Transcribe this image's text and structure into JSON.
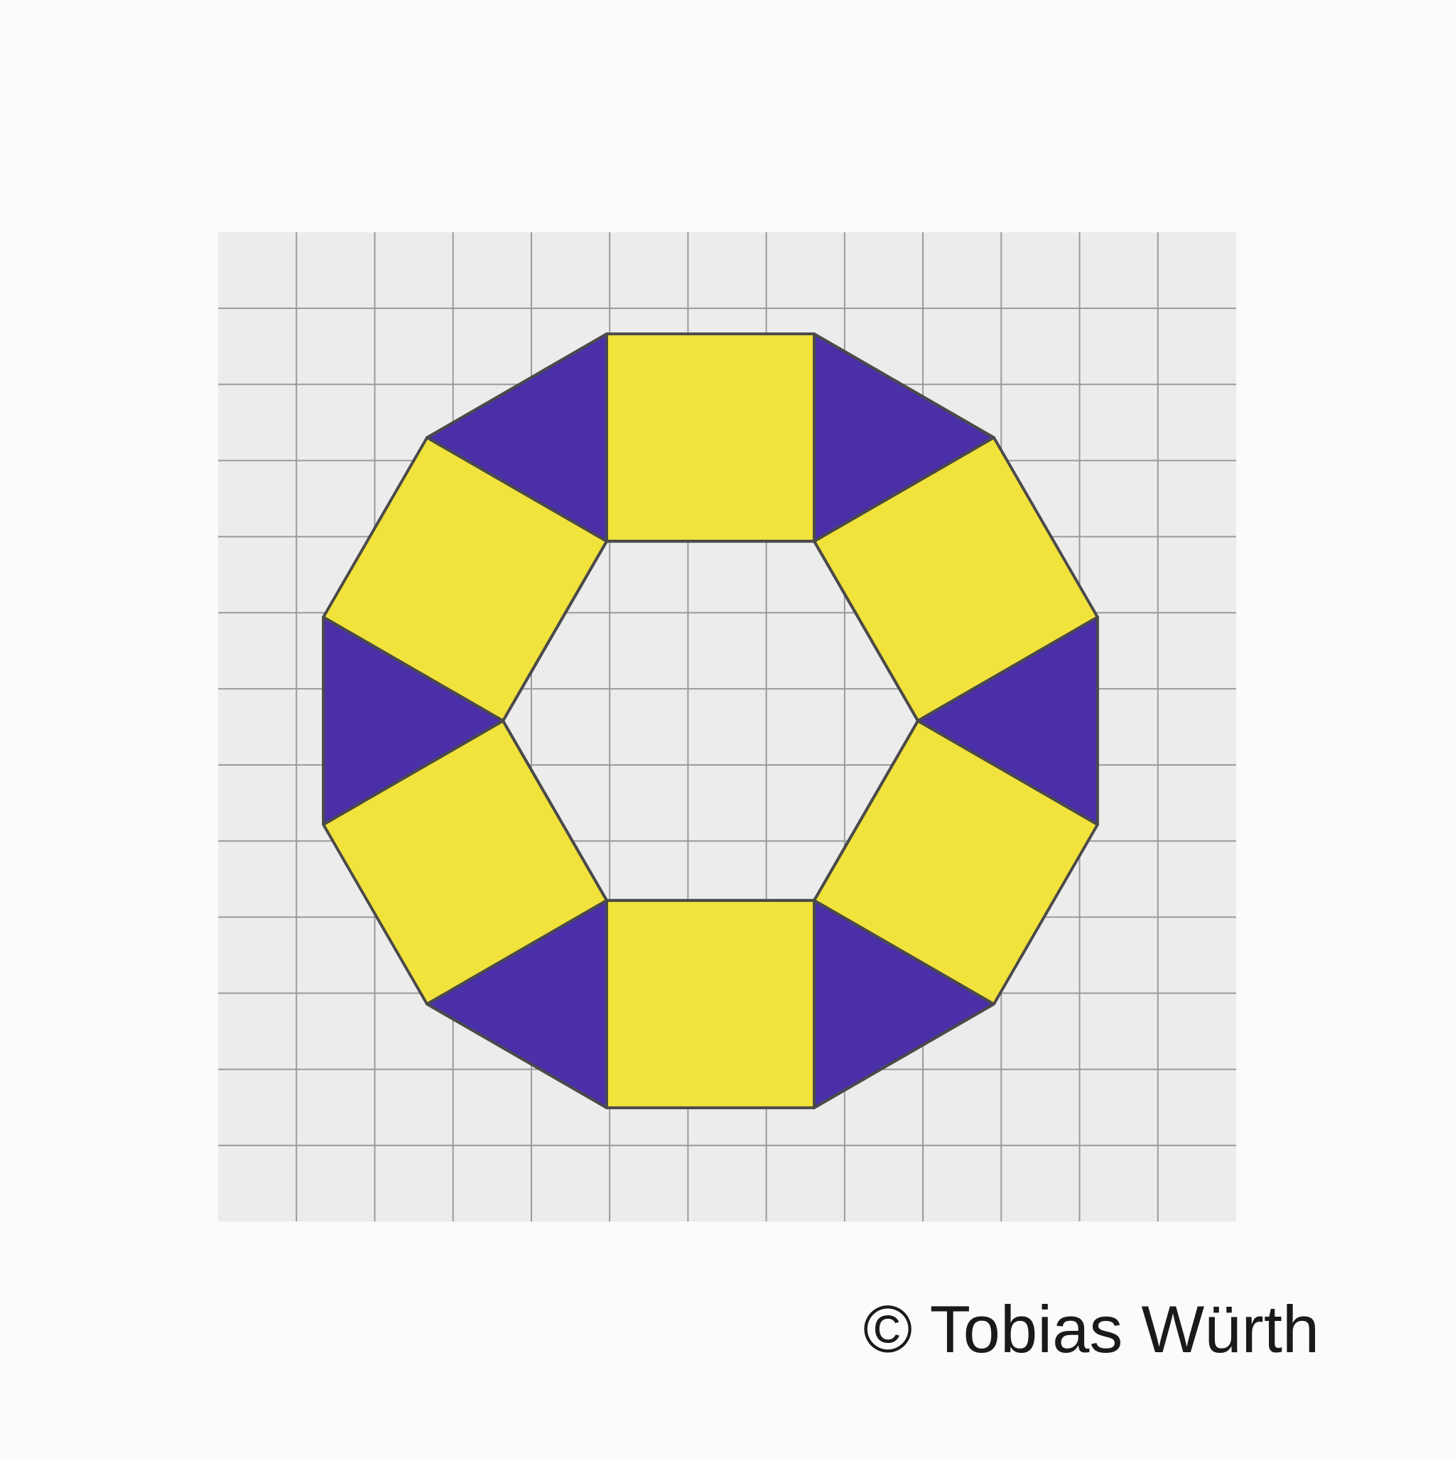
{
  "figure": {
    "subject": "dodecagon",
    "grid_columns": 13,
    "grid_rows": 13,
    "outer_tiles": {
      "squares": 6,
      "triangles": 6
    },
    "center_shape": "hexagon",
    "colors": {
      "paper": "#ececec",
      "grid_line": "#9a9a9a",
      "square_fill": "#f2e23c",
      "triangle_fill": "#4a2fa8",
      "outline": "#4a4a4a",
      "page_background": "#fbfbfb"
    }
  },
  "credit": {
    "text": "© Tobias Würth"
  }
}
